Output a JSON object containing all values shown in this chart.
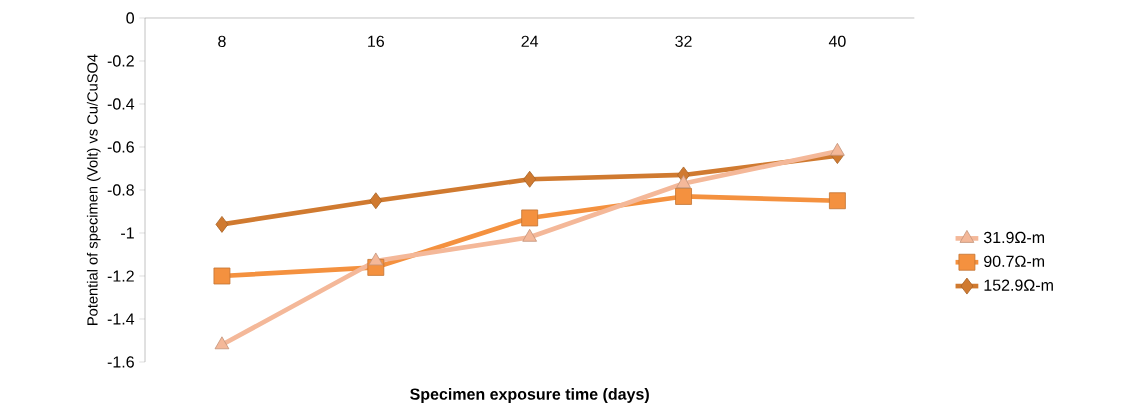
{
  "chart_data": {
    "type": "line",
    "xlabel": "Specimen exposure time (days)",
    "ylabel": "Potential of specimen (Volt) vs Cu/CuSO4",
    "categories": [
      "8",
      "16",
      "24",
      "32",
      "40"
    ],
    "series": [
      {
        "name": "31.9Ω-m",
        "color": "#f4b899",
        "marker": "triangle",
        "values": [
          -1.52,
          -1.13,
          -1.02,
          -0.77,
          -0.62
        ]
      },
      {
        "name": "90.7Ω-m",
        "color": "#f4913f",
        "marker": "square",
        "values": [
          -1.2,
          -1.16,
          -0.93,
          -0.83,
          -0.85
        ]
      },
      {
        "name": "152.9Ω-m",
        "color": "#d07a30",
        "marker": "diamond",
        "values": [
          -0.96,
          -0.85,
          -0.75,
          -0.73,
          -0.64
        ]
      }
    ],
    "ylim": [
      -1.6,
      0
    ],
    "yticks": [
      0,
      -0.2,
      -0.4,
      -0.6,
      -0.8,
      -1,
      -1.2,
      -1.4,
      -1.6
    ],
    "legend": "right"
  }
}
